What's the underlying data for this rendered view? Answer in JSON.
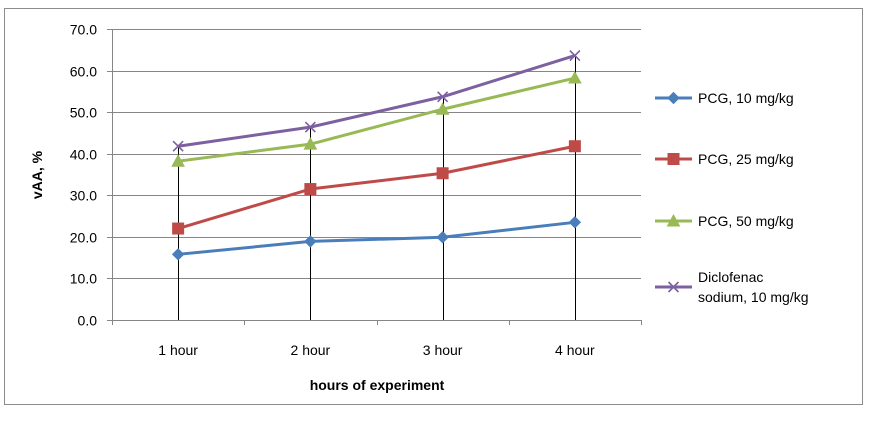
{
  "chart_data": {
    "type": "line",
    "title": "",
    "xlabel": "hours of experiment",
    "ylabel": "vAA, %",
    "categories": [
      "1 hour",
      "2 hour",
      "3 hour",
      "4 hour"
    ],
    "ylim": [
      0,
      70
    ],
    "ytick_step": 10,
    "ytick_labels": [
      "0.0",
      "10.0",
      "20.0",
      "30.0",
      "40.0",
      "50.0",
      "60.0",
      "70.0"
    ],
    "grid": true,
    "legend_position": "right",
    "series": [
      {
        "name": "PCG, 10 mg/kg",
        "legend_lines": [
          "PCG, 10 mg/kg"
        ],
        "values": [
          15.8,
          18.9,
          19.9,
          23.5
        ],
        "color": "#4a7ebb",
        "marker": "diamond"
      },
      {
        "name": "PCG, 25 mg/kg",
        "legend_lines": [
          "PCG, 25 mg/kg"
        ],
        "values": [
          22.0,
          31.5,
          35.3,
          41.8
        ],
        "color": "#be4b48",
        "marker": "square"
      },
      {
        "name": "PCG, 50 mg/kg",
        "legend_lines": [
          "PCG, 50 mg/kg"
        ],
        "values": [
          38.2,
          42.3,
          50.7,
          58.2
        ],
        "color": "#98b954",
        "marker": "triangle"
      },
      {
        "name": "Diclofenac sodium, 10 mg/kg",
        "legend_lines": [
          "Diclofenac",
          "sodium, 10 mg/kg"
        ],
        "values": [
          41.8,
          46.4,
          53.7,
          63.6
        ],
        "color": "#7d60a0",
        "marker": "x"
      }
    ]
  }
}
